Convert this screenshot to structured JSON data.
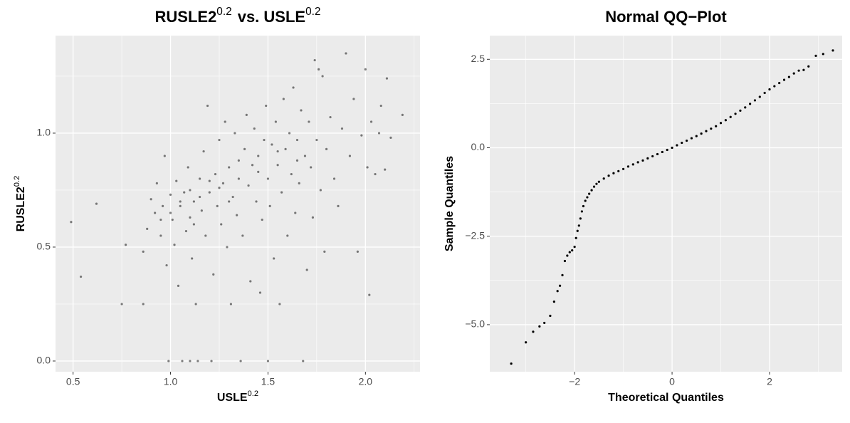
{
  "chart_data": [
    {
      "type": "scatter",
      "title": [
        "RUSLE2",
        "0.2",
        "vs.  USLE",
        "0.2"
      ],
      "x_label": [
        "USLE",
        "0.2"
      ],
      "y_label": [
        "RUSLE2",
        "0.2"
      ],
      "color": "#000000",
      "opacity": 0.5,
      "grid": true,
      "background": "#EBEBEB",
      "xlim": [
        0.41,
        2.28
      ],
      "ylim": [
        -0.047,
        1.428
      ],
      "xticks": [
        0.5,
        {
          "value": 1,
          "label": "1.0"
        },
        1.5,
        {
          "value": 2,
          "label": "2.0"
        }
      ],
      "yticks": [
        {
          "value": 0,
          "label": "0.0"
        },
        0.5,
        {
          "value": 1,
          "label": "1.0"
        }
      ],
      "minor_xticks": [
        0.75,
        1.25,
        1.75,
        2.25
      ],
      "minor_yticks": [
        0.25,
        0.75,
        1.25
      ],
      "x": [
        0.49,
        0.54,
        0.62,
        0.75,
        0.77,
        0.86,
        0.86,
        0.88,
        0.9,
        0.92,
        0.93,
        0.95,
        0.96,
        0.97,
        0.98,
        0.99,
        1.0,
        1.01,
        1.02,
        1.03,
        1.04,
        1.05,
        1.06,
        1.07,
        1.08,
        1.09,
        1.1,
        1.1,
        1.11,
        1.12,
        1.13,
        1.14,
        1.15,
        1.16,
        1.17,
        1.18,
        1.19,
        1.2,
        1.21,
        1.22,
        1.23,
        1.24,
        1.25,
        1.26,
        1.27,
        1.28,
        1.29,
        1.3,
        1.31,
        1.32,
        1.33,
        1.34,
        1.35,
        1.36,
        1.37,
        1.38,
        1.39,
        1.4,
        1.41,
        1.42,
        1.43,
        1.44,
        1.45,
        1.46,
        1.47,
        1.48,
        1.49,
        1.5,
        1.5,
        1.51,
        1.52,
        1.53,
        1.54,
        1.55,
        1.56,
        1.57,
        1.58,
        1.59,
        1.6,
        1.61,
        1.62,
        1.63,
        1.64,
        1.65,
        1.66,
        1.67,
        1.68,
        1.69,
        1.7,
        1.71,
        1.72,
        1.73,
        1.74,
        1.75,
        1.76,
        1.77,
        1.78,
        1.79,
        1.8,
        1.82,
        1.84,
        1.86,
        1.88,
        1.9,
        1.92,
        1.94,
        1.96,
        1.98,
        2.0,
        2.01,
        2.02,
        2.03,
        2.05,
        2.07,
        2.08,
        2.1,
        2.11,
        2.13,
        2.19,
        1.15,
        1.2,
        1.05,
        1.0,
        1.1,
        1.25,
        1.3,
        1.12,
        0.95,
        1.35,
        1.45,
        1.55,
        1.65
      ],
      "y": [
        0.61,
        0.37,
        0.69,
        0.25,
        0.51,
        0.25,
        0.48,
        0.58,
        0.71,
        0.65,
        0.78,
        0.55,
        0.68,
        0.9,
        0.42,
        0.0,
        0.73,
        0.62,
        0.51,
        0.79,
        0.33,
        0.68,
        0.0,
        0.74,
        0.57,
        0.85,
        0.0,
        0.63,
        0.45,
        0.7,
        0.25,
        0.0,
        0.8,
        0.66,
        0.92,
        0.55,
        1.12,
        0.74,
        0.0,
        0.38,
        0.82,
        0.68,
        0.97,
        0.6,
        0.78,
        1.05,
        0.5,
        0.85,
        0.25,
        0.72,
        1.0,
        0.64,
        0.88,
        0.0,
        0.55,
        0.93,
        1.08,
        0.77,
        0.35,
        0.86,
        1.02,
        0.7,
        0.9,
        0.3,
        0.62,
        0.97,
        1.12,
        0.0,
        0.8,
        0.68,
        0.95,
        0.45,
        1.05,
        0.86,
        0.25,
        0.74,
        1.15,
        0.93,
        0.55,
        1.0,
        0.82,
        1.2,
        0.65,
        0.97,
        0.78,
        1.1,
        0.0,
        0.9,
        0.4,
        1.05,
        0.85,
        0.63,
        1.32,
        0.97,
        1.28,
        0.75,
        1.25,
        0.48,
        0.93,
        1.07,
        0.8,
        0.68,
        1.02,
        1.35,
        0.9,
        1.15,
        0.48,
        0.99,
        1.28,
        0.85,
        0.29,
        1.05,
        0.82,
        1.0,
        1.12,
        0.84,
        1.24,
        0.98,
        1.08,
        0.72,
        0.79,
        0.7,
        0.65,
        0.75,
        0.76,
        0.7,
        0.6,
        0.62,
        0.8,
        0.83,
        0.92,
        0.88
      ]
    },
    {
      "type": "scatter",
      "title": [
        "Normal QQ−Plot"
      ],
      "x_label": [
        "Theoretical Quantiles"
      ],
      "y_label": [
        "Sample Quantiles"
      ],
      "color": "#000000",
      "opacity": 1,
      "grid": true,
      "background": "#EBEBEB",
      "xlim": [
        -3.74,
        3.49
      ],
      "ylim": [
        -6.33,
        3.17
      ],
      "xticks": [
        {
          "value": -2,
          "label": "−2"
        },
        0,
        2
      ],
      "yticks": [
        {
          "value": -5,
          "label": "−5.0"
        },
        {
          "value": -2.5,
          "label": "−2.5"
        },
        {
          "value": 0,
          "label": "0.0"
        },
        2.5
      ],
      "minor_xticks": [
        -3,
        -1,
        1,
        3
      ],
      "minor_yticks": [
        -3.75,
        -1.25,
        1.25
      ],
      "x": [
        -3.3,
        -3.0,
        -2.85,
        -2.72,
        -2.62,
        -2.5,
        -2.42,
        -2.35,
        -2.3,
        -2.25,
        -2.2,
        -2.15,
        -2.1,
        -2.05,
        -2.0,
        -1.97,
        -1.94,
        -1.91,
        -1.88,
        -1.85,
        -1.82,
        -1.78,
        -1.74,
        -1.7,
        -1.65,
        -1.6,
        -1.55,
        -1.5,
        -1.4,
        -1.3,
        -1.2,
        -1.1,
        -1.0,
        -0.9,
        -0.8,
        -0.7,
        -0.6,
        -0.5,
        -0.4,
        -0.3,
        -0.2,
        -0.1,
        0,
        0.1,
        0.2,
        0.3,
        0.4,
        0.5,
        0.6,
        0.7,
        0.8,
        0.9,
        1.0,
        1.1,
        1.2,
        1.3,
        1.4,
        1.5,
        1.6,
        1.7,
        1.8,
        1.9,
        2.0,
        2.1,
        2.2,
        2.3,
        2.4,
        2.5,
        2.6,
        2.7,
        2.8,
        2.95,
        3.1,
        3.3
      ],
      "y": [
        -6.1,
        -5.5,
        -5.2,
        -5.05,
        -4.95,
        -4.75,
        -4.35,
        -4.05,
        -3.9,
        -3.6,
        -3.2,
        -3.05,
        -2.95,
        -2.9,
        -2.8,
        -2.55,
        -2.35,
        -2.2,
        -2.0,
        -1.8,
        -1.65,
        -1.5,
        -1.4,
        -1.3,
        -1.2,
        -1.1,
        -1.02,
        -0.96,
        -0.87,
        -0.79,
        -0.72,
        -0.66,
        -0.6,
        -0.53,
        -0.47,
        -0.41,
        -0.36,
        -0.3,
        -0.24,
        -0.18,
        -0.12,
        -0.06,
        0.0,
        0.07,
        0.14,
        0.2,
        0.27,
        0.33,
        0.4,
        0.47,
        0.54,
        0.61,
        0.7,
        0.78,
        0.87,
        0.96,
        1.05,
        1.14,
        1.24,
        1.34,
        1.44,
        1.55,
        1.65,
        1.74,
        1.83,
        1.92,
        2.0,
        2.1,
        2.18,
        2.2,
        2.3,
        2.6,
        2.65,
        2.75
      ]
    }
  ]
}
